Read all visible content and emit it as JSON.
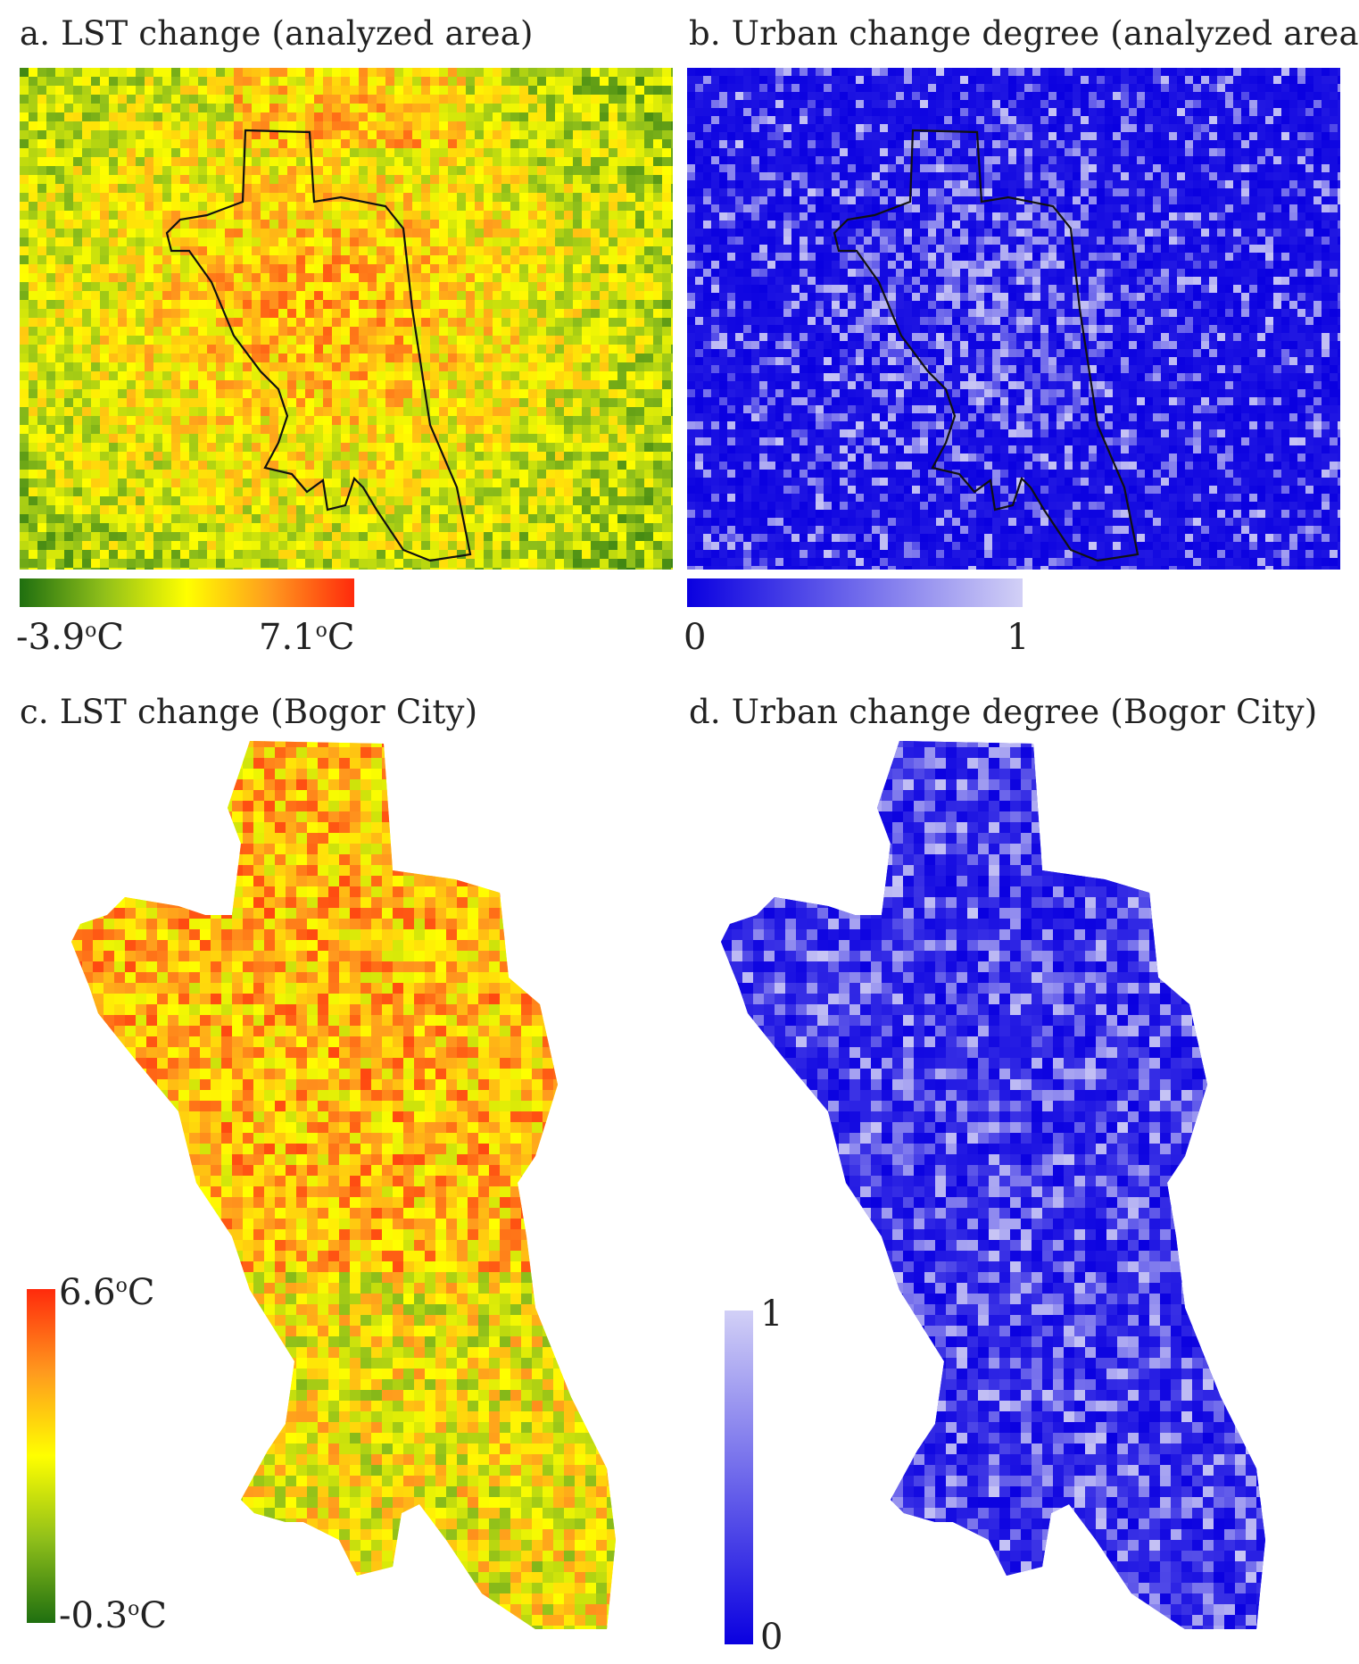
{
  "panels": {
    "a": {
      "title": "a. LST change (analyzed area)",
      "legend": {
        "min": "-3.9",
        "max": "7.1",
        "unit_sup": "o",
        "unit": "C"
      },
      "colors": [
        "#1f6f10",
        "#8fbf1a",
        "#ffff00",
        "#ff9a1e",
        "#ff2a0c"
      ]
    },
    "b": {
      "title": "b. Urban change degree (analyzed area)",
      "legend": {
        "min": "0",
        "max": "1"
      },
      "colors": [
        "#0a00e0",
        "#d2d0f6"
      ]
    },
    "c": {
      "title": "c. LST change (Bogor City)",
      "legend": {
        "min": "-0.3",
        "max": "6.6",
        "unit_sup": "o",
        "unit": "C"
      },
      "colors": [
        "#1f6f10",
        "#8fbf1a",
        "#ffff00",
        "#ff9a1e",
        "#ff2a0c"
      ]
    },
    "d": {
      "title": "d. Urban change degree (Bogor City)",
      "legend": {
        "min": "0",
        "max": "1"
      },
      "colors": [
        "#0a00e0",
        "#d2d0f6"
      ]
    }
  }
}
